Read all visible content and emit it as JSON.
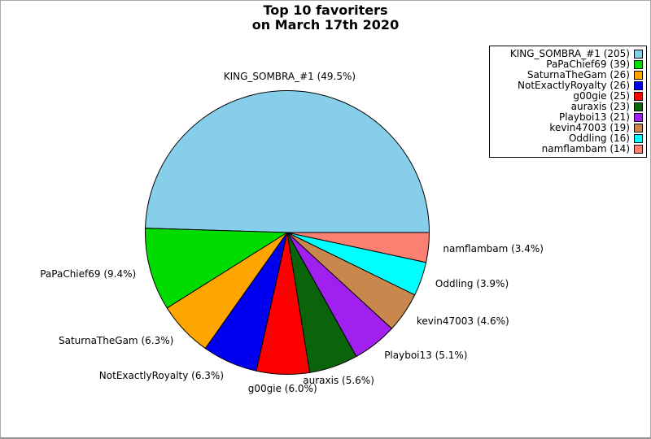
{
  "window": {
    "background": "#ffffff",
    "frame_border_color": "#a9a9a9"
  },
  "chart_data": {
    "type": "pie",
    "title": "Top 10 favoriters",
    "subtitle": "on March 17th 2020",
    "categories": [
      "KING_SOMBRA_#1",
      "PaPaChief69",
      "SaturnaTheGam",
      "NotExactlyRoyalty",
      "g00gie",
      "auraxis",
      "Playboi13",
      "kevin47003",
      "Oddling",
      "namflambam"
    ],
    "values": [
      205,
      39,
      26,
      26,
      25,
      23,
      21,
      19,
      16,
      14
    ],
    "percentages": [
      49.5,
      9.4,
      6.3,
      6.3,
      6.0,
      5.6,
      5.1,
      4.6,
      3.9,
      3.4
    ],
    "colors": [
      "#87CEEB",
      "#00DC00",
      "#FFA500",
      "#0000F0",
      "#FA0000",
      "#0A640A",
      "#A020F0",
      "#C8874D",
      "#00FFFF",
      "#FA8072"
    ],
    "slice_labels": [
      "KING_SOMBRA_#1 (49.5%)",
      "PaPaChief69 (9.4%)",
      "SaturnaTheGam (6.3%)",
      "NotExactlyRoyalty (6.3%)",
      "g00gie (6.0%)",
      "auraxis (5.6%)",
      "Playboi13 (5.1%)",
      "kevin47003 (4.6%)",
      "Oddling (3.9%)",
      "namflambam (3.4%)"
    ],
    "legend_entries": [
      "KING_SOMBRA_#1 (205)",
      "PaPaChief69 (39)",
      "SaturnaTheGam (26)",
      "NotExactlyRoyalty (26)",
      "g00gie (25)",
      "auraxis (23)",
      "Playboi13 (21)",
      "kevin47003 (19)",
      "Oddling (16)",
      "namflambam (14)"
    ],
    "legend_position": "upper right",
    "start_angle_deg": 0,
    "direction": "counterclockwise",
    "slice_edge_color": "#000000"
  }
}
